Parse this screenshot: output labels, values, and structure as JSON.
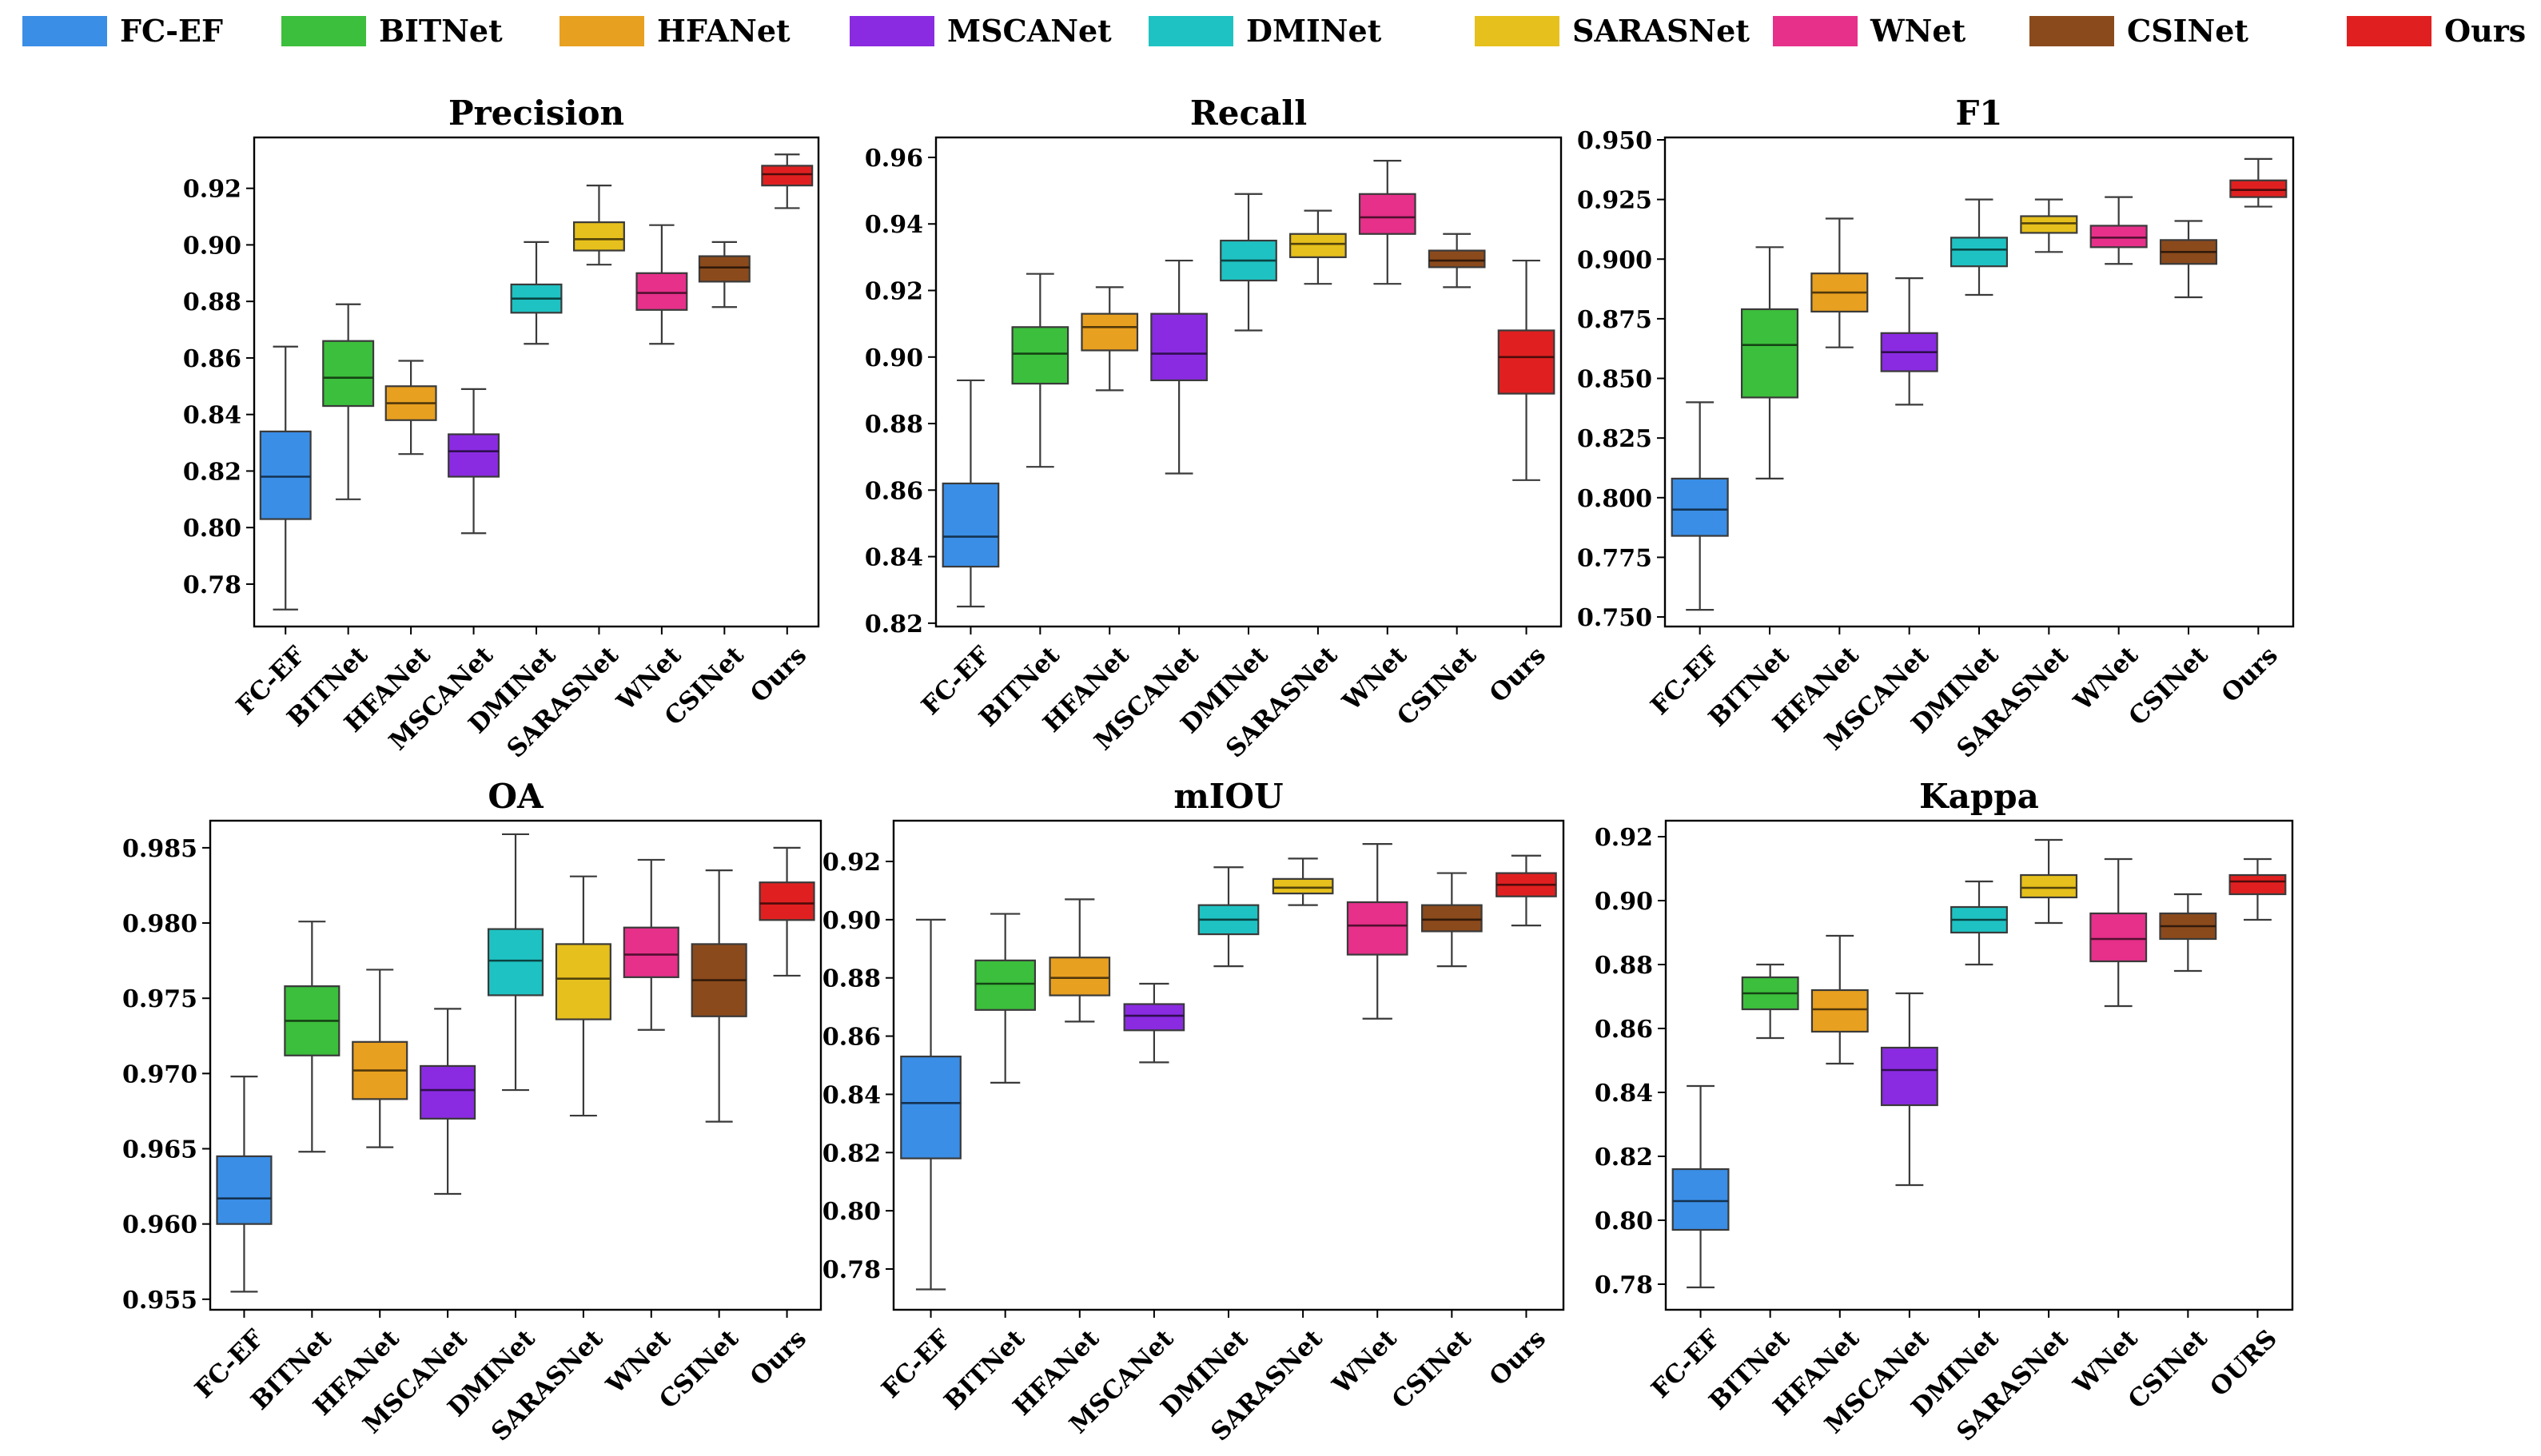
{
  "legend": [
    {
      "name": "FC-EF",
      "color": "#3a8ee6"
    },
    {
      "name": "BITNet",
      "color": "#3cbf3c"
    },
    {
      "name": "HFANet",
      "color": "#e8a020"
    },
    {
      "name": "MSCANet",
      "color": "#8a2be2"
    },
    {
      "name": "DMINet",
      "color": "#1fc2c2"
    },
    {
      "name": "SARASNet",
      "color": "#e6c01c"
    },
    {
      "name": "WNet",
      "color": "#e6308a"
    },
    {
      "name": "CSINet",
      "color": "#8b4a1c"
    },
    {
      "name": "Ours",
      "color": "#e02020"
    }
  ],
  "chart_data": [
    {
      "type": "boxplot",
      "title": "Precision",
      "categories": [
        "FC-EF",
        "BITNet",
        "HFANet",
        "MSCANet",
        "DMINet",
        "SARASNet",
        "WNet",
        "CSINet",
        "Ours"
      ],
      "ylim": [
        0.765,
        0.938
      ],
      "yticks": [
        0.78,
        0.8,
        0.82,
        0.84,
        0.86,
        0.88,
        0.9,
        0.92
      ],
      "tick_decimals": 2,
      "boxes": [
        {
          "min": 0.771,
          "q1": 0.803,
          "median": 0.818,
          "q3": 0.834,
          "max": 0.864
        },
        {
          "min": 0.81,
          "q1": 0.843,
          "median": 0.853,
          "q3": 0.866,
          "max": 0.879
        },
        {
          "min": 0.826,
          "q1": 0.838,
          "median": 0.844,
          "q3": 0.85,
          "max": 0.859
        },
        {
          "min": 0.798,
          "q1": 0.818,
          "median": 0.827,
          "q3": 0.833,
          "max": 0.849
        },
        {
          "min": 0.865,
          "q1": 0.876,
          "median": 0.881,
          "q3": 0.886,
          "max": 0.901
        },
        {
          "min": 0.893,
          "q1": 0.898,
          "median": 0.902,
          "q3": 0.908,
          "max": 0.921
        },
        {
          "min": 0.865,
          "q1": 0.877,
          "median": 0.883,
          "q3": 0.89,
          "max": 0.907
        },
        {
          "min": 0.878,
          "q1": 0.887,
          "median": 0.892,
          "q3": 0.896,
          "max": 0.901
        },
        {
          "min": 0.913,
          "q1": 0.921,
          "median": 0.925,
          "q3": 0.928,
          "max": 0.932
        }
      ]
    },
    {
      "type": "boxplot",
      "title": "Recall",
      "categories": [
        "FC-EF",
        "BITNet",
        "HFANet",
        "MSCANet",
        "DMINet",
        "SARASNet",
        "WNet",
        "CSINet",
        "Ours"
      ],
      "ylim": [
        0.819,
        0.966
      ],
      "yticks": [
        0.82,
        0.84,
        0.86,
        0.88,
        0.9,
        0.92,
        0.94,
        0.96
      ],
      "tick_decimals": 2,
      "boxes": [
        {
          "min": 0.825,
          "q1": 0.837,
          "median": 0.846,
          "q3": 0.862,
          "max": 0.893
        },
        {
          "min": 0.867,
          "q1": 0.892,
          "median": 0.901,
          "q3": 0.909,
          "max": 0.925
        },
        {
          "min": 0.89,
          "q1": 0.902,
          "median": 0.909,
          "q3": 0.913,
          "max": 0.921
        },
        {
          "min": 0.865,
          "q1": 0.893,
          "median": 0.901,
          "q3": 0.913,
          "max": 0.929
        },
        {
          "min": 0.908,
          "q1": 0.923,
          "median": 0.929,
          "q3": 0.935,
          "max": 0.949
        },
        {
          "min": 0.922,
          "q1": 0.93,
          "median": 0.934,
          "q3": 0.937,
          "max": 0.944
        },
        {
          "min": 0.922,
          "q1": 0.937,
          "median": 0.942,
          "q3": 0.949,
          "max": 0.959
        },
        {
          "min": 0.921,
          "q1": 0.927,
          "median": 0.929,
          "q3": 0.932,
          "max": 0.937
        },
        {
          "min": 0.863,
          "q1": 0.889,
          "median": 0.9,
          "q3": 0.908,
          "max": 0.929
        }
      ]
    },
    {
      "type": "boxplot",
      "title": "F1",
      "categories": [
        "FC-EF",
        "BITNet",
        "HFANet",
        "MSCANet",
        "DMINet",
        "SARASNet",
        "WNet",
        "CSINet",
        "Ours"
      ],
      "ylim": [
        0.746,
        0.951
      ],
      "yticks": [
        0.75,
        0.775,
        0.8,
        0.825,
        0.85,
        0.875,
        0.9,
        0.925,
        0.95
      ],
      "tick_decimals": 3,
      "boxes": [
        {
          "min": 0.753,
          "q1": 0.784,
          "median": 0.795,
          "q3": 0.808,
          "max": 0.84
        },
        {
          "min": 0.808,
          "q1": 0.842,
          "median": 0.864,
          "q3": 0.879,
          "max": 0.905
        },
        {
          "min": 0.863,
          "q1": 0.878,
          "median": 0.886,
          "q3": 0.894,
          "max": 0.917
        },
        {
          "min": 0.839,
          "q1": 0.853,
          "median": 0.861,
          "q3": 0.869,
          "max": 0.892
        },
        {
          "min": 0.885,
          "q1": 0.897,
          "median": 0.904,
          "q3": 0.909,
          "max": 0.925
        },
        {
          "min": 0.903,
          "q1": 0.911,
          "median": 0.915,
          "q3": 0.918,
          "max": 0.925
        },
        {
          "min": 0.898,
          "q1": 0.905,
          "median": 0.909,
          "q3": 0.914,
          "max": 0.926
        },
        {
          "min": 0.884,
          "q1": 0.898,
          "median": 0.903,
          "q3": 0.908,
          "max": 0.916
        },
        {
          "min": 0.922,
          "q1": 0.926,
          "median": 0.929,
          "q3": 0.933,
          "max": 0.942
        }
      ]
    },
    {
      "type": "boxplot",
      "title": "OA",
      "categories": [
        "FC-EF",
        "BITNet",
        "HFANet",
        "MSCANet",
        "DMINet",
        "SARASNet",
        "WNet",
        "CSINet",
        "Ours"
      ],
      "ylim": [
        0.9543,
        0.9868
      ],
      "yticks": [
        0.955,
        0.96,
        0.965,
        0.97,
        0.975,
        0.98,
        0.985
      ],
      "tick_decimals": 3,
      "boxes": [
        {
          "min": 0.9555,
          "q1": 0.96,
          "median": 0.9617,
          "q3": 0.9645,
          "max": 0.9698
        },
        {
          "min": 0.9648,
          "q1": 0.9712,
          "median": 0.9735,
          "q3": 0.9758,
          "max": 0.9801
        },
        {
          "min": 0.9651,
          "q1": 0.9683,
          "median": 0.9702,
          "q3": 0.9721,
          "max": 0.9769
        },
        {
          "min": 0.962,
          "q1": 0.967,
          "median": 0.9689,
          "q3": 0.9705,
          "max": 0.9743
        },
        {
          "min": 0.9689,
          "q1": 0.9752,
          "median": 0.9775,
          "q3": 0.9796,
          "max": 0.9859
        },
        {
          "min": 0.9672,
          "q1": 0.9736,
          "median": 0.9763,
          "q3": 0.9786,
          "max": 0.9831
        },
        {
          "min": 0.9729,
          "q1": 0.9764,
          "median": 0.9779,
          "q3": 0.9797,
          "max": 0.9842
        },
        {
          "min": 0.9668,
          "q1": 0.9738,
          "median": 0.9762,
          "q3": 0.9786,
          "max": 0.9835
        },
        {
          "min": 0.9765,
          "q1": 0.9802,
          "median": 0.9813,
          "q3": 0.9827,
          "max": 0.985
        }
      ]
    },
    {
      "type": "boxplot",
      "title": "mIOU",
      "categories": [
        "FC-EF",
        "BITNet",
        "HFANet",
        "MSCANet",
        "DMINet",
        "SARASNet",
        "WNet",
        "CSINet",
        "Ours"
      ],
      "ylim": [
        0.766,
        0.934
      ],
      "yticks": [
        0.78,
        0.8,
        0.82,
        0.84,
        0.86,
        0.88,
        0.9,
        0.92
      ],
      "tick_decimals": 2,
      "boxes": [
        {
          "min": 0.773,
          "q1": 0.818,
          "median": 0.837,
          "q3": 0.853,
          "max": 0.9
        },
        {
          "min": 0.844,
          "q1": 0.869,
          "median": 0.878,
          "q3": 0.886,
          "max": 0.902
        },
        {
          "min": 0.865,
          "q1": 0.874,
          "median": 0.88,
          "q3": 0.887,
          "max": 0.907
        },
        {
          "min": 0.851,
          "q1": 0.862,
          "median": 0.867,
          "q3": 0.871,
          "max": 0.878
        },
        {
          "min": 0.884,
          "q1": 0.895,
          "median": 0.9,
          "q3": 0.905,
          "max": 0.918
        },
        {
          "min": 0.905,
          "q1": 0.909,
          "median": 0.911,
          "q3": 0.914,
          "max": 0.921
        },
        {
          "min": 0.866,
          "q1": 0.888,
          "median": 0.898,
          "q3": 0.906,
          "max": 0.926
        },
        {
          "min": 0.884,
          "q1": 0.896,
          "median": 0.9,
          "q3": 0.905,
          "max": 0.916
        },
        {
          "min": 0.898,
          "q1": 0.908,
          "median": 0.912,
          "q3": 0.916,
          "max": 0.922
        }
      ]
    },
    {
      "type": "boxplot",
      "title": "Kappa",
      "categories": [
        "FC-EF",
        "BITNet",
        "HFANet",
        "MSCANet",
        "DMINet",
        "SARASNet",
        "WNet",
        "CSINet",
        "OURS"
      ],
      "ylim": [
        0.772,
        0.925
      ],
      "yticks": [
        0.78,
        0.8,
        0.82,
        0.84,
        0.86,
        0.88,
        0.9,
        0.92
      ],
      "tick_decimals": 2,
      "boxes": [
        {
          "min": 0.779,
          "q1": 0.797,
          "median": 0.806,
          "q3": 0.816,
          "max": 0.842
        },
        {
          "min": 0.857,
          "q1": 0.866,
          "median": 0.871,
          "q3": 0.876,
          "max": 0.88
        },
        {
          "min": 0.849,
          "q1": 0.859,
          "median": 0.866,
          "q3": 0.872,
          "max": 0.889
        },
        {
          "min": 0.811,
          "q1": 0.836,
          "median": 0.847,
          "q3": 0.854,
          "max": 0.871
        },
        {
          "min": 0.88,
          "q1": 0.89,
          "median": 0.894,
          "q3": 0.898,
          "max": 0.906
        },
        {
          "min": 0.893,
          "q1": 0.901,
          "median": 0.904,
          "q3": 0.908,
          "max": 0.919
        },
        {
          "min": 0.867,
          "q1": 0.881,
          "median": 0.888,
          "q3": 0.896,
          "max": 0.913
        },
        {
          "min": 0.878,
          "q1": 0.888,
          "median": 0.892,
          "q3": 0.896,
          "max": 0.902
        },
        {
          "min": 0.894,
          "q1": 0.902,
          "median": 0.906,
          "q3": 0.908,
          "max": 0.913
        }
      ]
    }
  ]
}
